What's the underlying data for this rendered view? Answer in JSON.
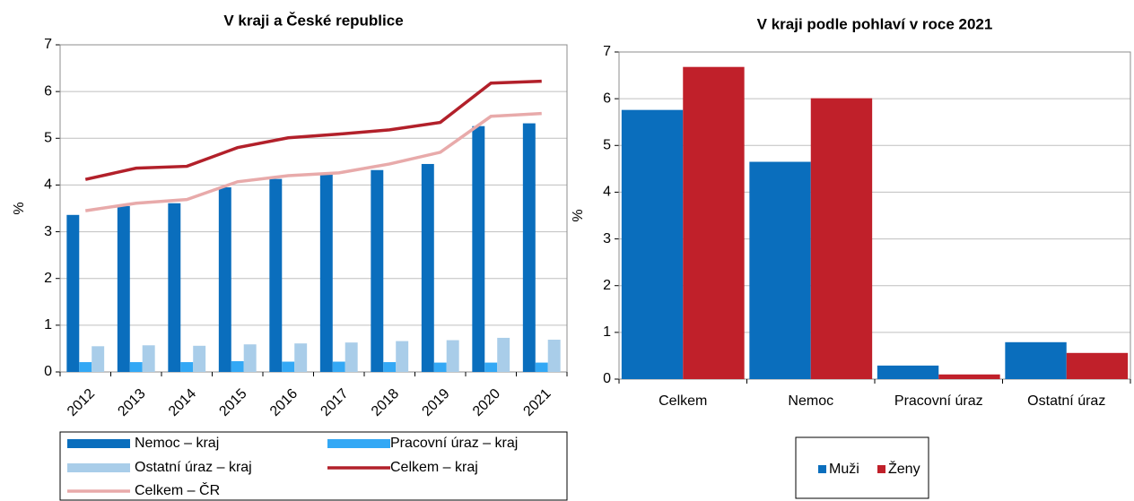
{
  "chart_data": [
    {
      "type": "bar",
      "title": "V kraji a České republice",
      "y_label": "%",
      "categories": [
        "2012",
        "2013",
        "2014",
        "2015",
        "2016",
        "2017",
        "2018",
        "2019",
        "2020",
        "2021"
      ],
      "ylim": [
        0,
        7
      ],
      "yticks": [
        0,
        1,
        2,
        3,
        4,
        5,
        6,
        7
      ],
      "grid": true,
      "legend": "bottom",
      "series": [
        {
          "name": "Nemoc – kraj",
          "type": "bar",
          "color": "#0a6ebd",
          "values": [
            3.36,
            3.55,
            3.61,
            3.95,
            4.13,
            4.22,
            4.32,
            4.45,
            5.26,
            5.32
          ]
        },
        {
          "name": "Pracovní úraz – kraj",
          "type": "bar",
          "color": "#33a8f5",
          "values": [
            0.21,
            0.21,
            0.21,
            0.23,
            0.22,
            0.22,
            0.21,
            0.2,
            0.2,
            0.2
          ]
        },
        {
          "name": "Ostatní úraz – kraj",
          "type": "bar",
          "color": "#a9cde9",
          "values": [
            0.55,
            0.57,
            0.56,
            0.59,
            0.61,
            0.63,
            0.66,
            0.68,
            0.73,
            0.69
          ]
        },
        {
          "name": "Celkem – kraj",
          "type": "line",
          "color": "#b2202a",
          "values": [
            4.12,
            4.36,
            4.4,
            4.8,
            5.01,
            5.09,
            5.18,
            5.34,
            6.18,
            6.22
          ]
        },
        {
          "name": "Celkem – ČR",
          "type": "line",
          "color": "#e8aaaa",
          "values": [
            3.45,
            3.61,
            3.69,
            4.07,
            4.2,
            4.26,
            4.45,
            4.7,
            5.47,
            5.53
          ]
        }
      ]
    },
    {
      "type": "bar",
      "title": "V kraji podle pohlaví v roce 2021",
      "y_label": "%",
      "categories": [
        "Celkem",
        "Nemoc",
        "Pracovní úraz",
        "Ostatní úraz"
      ],
      "ylim": [
        0,
        7
      ],
      "yticks": [
        0,
        1,
        2,
        3,
        4,
        5,
        6,
        7
      ],
      "grid": true,
      "legend": "bottom",
      "series": [
        {
          "name": "Muži",
          "type": "bar",
          "color": "#0a6ebd",
          "values": [
            5.76,
            4.65,
            0.29,
            0.79
          ]
        },
        {
          "name": "Ženy",
          "type": "bar",
          "color": "#c0202a",
          "values": [
            6.68,
            6.01,
            0.1,
            0.56
          ]
        }
      ]
    }
  ]
}
